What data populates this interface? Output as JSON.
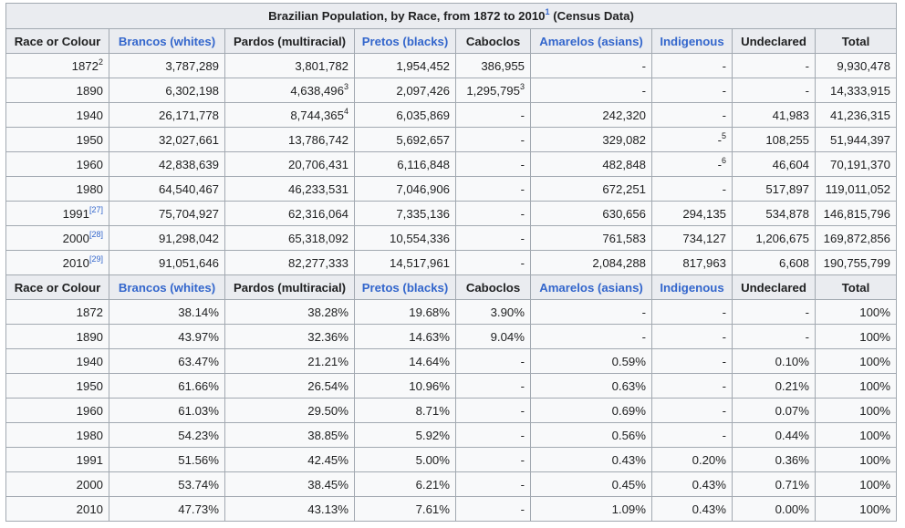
{
  "title": "Brazilian Population, by Race, from 1872 to 2010",
  "title_note": "1",
  "title_suffix": "(Census Data)",
  "headers": [
    {
      "label": "Race or Colour",
      "link": false
    },
    {
      "label": "Brancos (whites)",
      "link": true
    },
    {
      "label": "Pardos (multiracial)",
      "link": false
    },
    {
      "label": "Pretos (blacks)",
      "link": true
    },
    {
      "label": "Caboclos",
      "link": false
    },
    {
      "label": "Amarelos (asians)",
      "link": true
    },
    {
      "label": "Indigenous",
      "link": true
    },
    {
      "label": "Undeclared",
      "link": false
    },
    {
      "label": "Total",
      "link": false
    }
  ],
  "absolute_rows": [
    {
      "year": "1872",
      "year_sup": "2",
      "year_sup_link": false,
      "cells": [
        {
          "v": "3,787,289"
        },
        {
          "v": "3,801,782"
        },
        {
          "v": "1,954,452"
        },
        {
          "v": "386,955"
        },
        {
          "v": "-"
        },
        {
          "v": "-"
        },
        {
          "v": "-"
        },
        {
          "v": "9,930,478"
        }
      ]
    },
    {
      "year": "1890",
      "year_sup": "",
      "year_sup_link": false,
      "cells": [
        {
          "v": "6,302,198"
        },
        {
          "v": "4,638,496",
          "sup": "3"
        },
        {
          "v": "2,097,426"
        },
        {
          "v": "1,295,795",
          "sup": "3"
        },
        {
          "v": "-"
        },
        {
          "v": "-"
        },
        {
          "v": "-"
        },
        {
          "v": "14,333,915"
        }
      ]
    },
    {
      "year": "1940",
      "year_sup": "",
      "year_sup_link": false,
      "cells": [
        {
          "v": "26,171,778"
        },
        {
          "v": "8,744,365",
          "sup": "4"
        },
        {
          "v": "6,035,869"
        },
        {
          "v": "-"
        },
        {
          "v": "242,320"
        },
        {
          "v": "-"
        },
        {
          "v": "41,983"
        },
        {
          "v": "41,236,315"
        }
      ]
    },
    {
      "year": "1950",
      "year_sup": "",
      "year_sup_link": false,
      "cells": [
        {
          "v": "32,027,661"
        },
        {
          "v": "13,786,742"
        },
        {
          "v": "5,692,657"
        },
        {
          "v": "-"
        },
        {
          "v": "329,082"
        },
        {
          "v": "-",
          "sup": "5"
        },
        {
          "v": "108,255"
        },
        {
          "v": "51,944,397"
        }
      ]
    },
    {
      "year": "1960",
      "year_sup": "",
      "year_sup_link": false,
      "cells": [
        {
          "v": "42,838,639"
        },
        {
          "v": "20,706,431"
        },
        {
          "v": "6,116,848"
        },
        {
          "v": "-"
        },
        {
          "v": "482,848"
        },
        {
          "v": "-",
          "sup": "6"
        },
        {
          "v": "46,604"
        },
        {
          "v": "70,191,370"
        }
      ]
    },
    {
      "year": "1980",
      "year_sup": "",
      "year_sup_link": false,
      "cells": [
        {
          "v": "64,540,467"
        },
        {
          "v": "46,233,531"
        },
        {
          "v": "7,046,906"
        },
        {
          "v": "-"
        },
        {
          "v": "672,251"
        },
        {
          "v": "-"
        },
        {
          "v": "517,897"
        },
        {
          "v": "119,011,052"
        }
      ]
    },
    {
      "year": "1991",
      "year_sup": "[27]",
      "year_sup_link": true,
      "cells": [
        {
          "v": "75,704,927"
        },
        {
          "v": "62,316,064"
        },
        {
          "v": "7,335,136"
        },
        {
          "v": "-"
        },
        {
          "v": "630,656"
        },
        {
          "v": "294,135"
        },
        {
          "v": "534,878"
        },
        {
          "v": "146,815,796"
        }
      ]
    },
    {
      "year": "2000",
      "year_sup": "[28]",
      "year_sup_link": true,
      "cells": [
        {
          "v": "91,298,042"
        },
        {
          "v": "65,318,092"
        },
        {
          "v": "10,554,336"
        },
        {
          "v": "-"
        },
        {
          "v": "761,583"
        },
        {
          "v": "734,127"
        },
        {
          "v": "1,206,675"
        },
        {
          "v": "169,872,856"
        }
      ]
    },
    {
      "year": "2010",
      "year_sup": "[29]",
      "year_sup_link": true,
      "cells": [
        {
          "v": "91,051,646"
        },
        {
          "v": "82,277,333"
        },
        {
          "v": "14,517,961"
        },
        {
          "v": "-"
        },
        {
          "v": "2,084,288"
        },
        {
          "v": "817,963"
        },
        {
          "v": "6,608"
        },
        {
          "v": "190,755,799"
        }
      ]
    }
  ],
  "percent_rows": [
    {
      "year": "1872",
      "cells": [
        "38.14%",
        "38.28%",
        "19.68%",
        "3.90%",
        "-",
        "-",
        "-",
        "100%"
      ]
    },
    {
      "year": "1890",
      "cells": [
        "43.97%",
        "32.36%",
        "14.63%",
        "9.04%",
        "-",
        "-",
        "-",
        "100%"
      ]
    },
    {
      "year": "1940",
      "cells": [
        "63.47%",
        "21.21%",
        "14.64%",
        "-",
        "0.59%",
        "-",
        "0.10%",
        "100%"
      ]
    },
    {
      "year": "1950",
      "cells": [
        "61.66%",
        "26.54%",
        "10.96%",
        "-",
        "0.63%",
        "-",
        "0.21%",
        "100%"
      ]
    },
    {
      "year": "1960",
      "cells": [
        "61.03%",
        "29.50%",
        "8.71%",
        "-",
        "0.69%",
        "-",
        "0.07%",
        "100%"
      ]
    },
    {
      "year": "1980",
      "cells": [
        "54.23%",
        "38.85%",
        "5.92%",
        "-",
        "0.56%",
        "-",
        "0.44%",
        "100%"
      ]
    },
    {
      "year": "1991",
      "cells": [
        "51.56%",
        "42.45%",
        "5.00%",
        "-",
        "0.43%",
        "0.20%",
        "0.36%",
        "100%"
      ]
    },
    {
      "year": "2000",
      "cells": [
        "53.74%",
        "38.45%",
        "6.21%",
        "-",
        "0.45%",
        "0.43%",
        "0.71%",
        "100%"
      ]
    },
    {
      "year": "2010",
      "cells": [
        "47.73%",
        "43.13%",
        "7.61%",
        "-",
        "1.09%",
        "0.43%",
        "0.00%",
        "100%"
      ]
    }
  ]
}
